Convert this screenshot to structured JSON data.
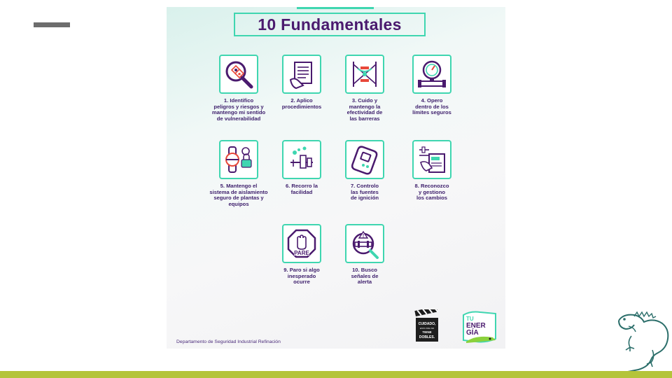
{
  "slide": {
    "accent_color": "#b4c43a"
  },
  "poster": {
    "title": "10 Fundamentales",
    "items": [
      {
        "number": "1.",
        "text": "Identifico peligros y riesgos y mantengo mi sentido de vulnerabilidad",
        "lines": [
          "1. Identifico",
          "peligros y riesgos y",
          "mantengo mi sentido",
          "de vulnerabilidad"
        ],
        "icon": "magnifier-hazard-icon"
      },
      {
        "number": "2.",
        "text": "Aplico procedimientos",
        "lines": [
          "2. Aplico",
          "procedimientos"
        ],
        "icon": "procedure-document-icon"
      },
      {
        "number": "3.",
        "text": "Cuido y mantengo la efectividad de las barreras",
        "lines": [
          "3. Cuido y",
          "mantengo la",
          "efectividad de",
          "las barreras"
        ],
        "icon": "barrier-icon"
      },
      {
        "number": "4.",
        "text": "Opero dentro de los límites seguros",
        "lines": [
          "4. Opero",
          "dentro de los",
          "límites seguros"
        ],
        "icon": "pressure-gauge-icon"
      },
      {
        "number": "5.",
        "text": "Mantengo el sistema de aislamiento seguro de plantas y equipos",
        "lines": [
          "5. Mantengo el",
          "sistema de aislamiento",
          "seguro de plantas y",
          "equipos"
        ],
        "icon": "valve-lock-icon"
      },
      {
        "number": "6.",
        "text": "Recorro la facilidad",
        "lines": [
          "6. Recorro la",
          "facilidad"
        ],
        "icon": "facility-walk-icon"
      },
      {
        "number": "7.",
        "text": "Controlo las fuentes de ignición",
        "lines": [
          "7. Controlo",
          "las fuentes",
          "de ignición"
        ],
        "icon": "gas-detector-icon"
      },
      {
        "number": "8.",
        "text": "Reconozco y gestiono los cambios",
        "lines": [
          "8. Reconozco",
          "y gestiono",
          "los cambios"
        ],
        "icon": "moc-document-icon"
      },
      {
        "number": "9.",
        "text": "Paro si algo inesperado ocurre",
        "lines": [
          "9. Paro si algo",
          "inesperado",
          "ocurre"
        ],
        "icon": "stop-hand-icon",
        "sign_text": "PARE"
      },
      {
        "number": "10.",
        "text": "Busco señales de alerta",
        "lines": [
          "10. Busco",
          "señales de",
          "alerta"
        ],
        "icon": "pipe-alert-icon"
      }
    ],
    "footer": {
      "department": "Departamento de Seguridad Industrial Refinación",
      "clapper_text": [
        "CUIDADO,",
        "ESTA VIDA NO",
        "TIENE",
        "DOBLES."
      ],
      "brand_text": [
        "TU",
        "ENER",
        "GÍA"
      ]
    }
  }
}
